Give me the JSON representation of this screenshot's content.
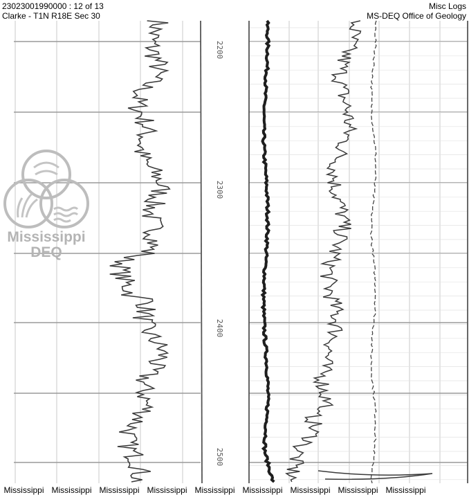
{
  "header": {
    "well_id": "23023001990000 : 12 of 13",
    "location": "Clarke - T1N R18E Sec 30",
    "log_type": "Misc Logs",
    "office": "MS-DEQ Office of Geology"
  },
  "watermark": {
    "line1": "Mississippi",
    "line2": "DEQ"
  },
  "depth_labels": [
    "2200",
    "2300",
    "2400",
    "2500"
  ],
  "footer": {
    "repeat_text": [
      "Mississippi",
      "Mississippi",
      "Mississippi",
      "Mississippi",
      "Mississippi",
      "Mississippi",
      "Mississippi",
      "Mississippi",
      "Mississippi"
    ]
  },
  "colors": {
    "trace": "#3a3a3a",
    "grid": "#c8c8c8",
    "watermark": "#b4b4b4"
  }
}
